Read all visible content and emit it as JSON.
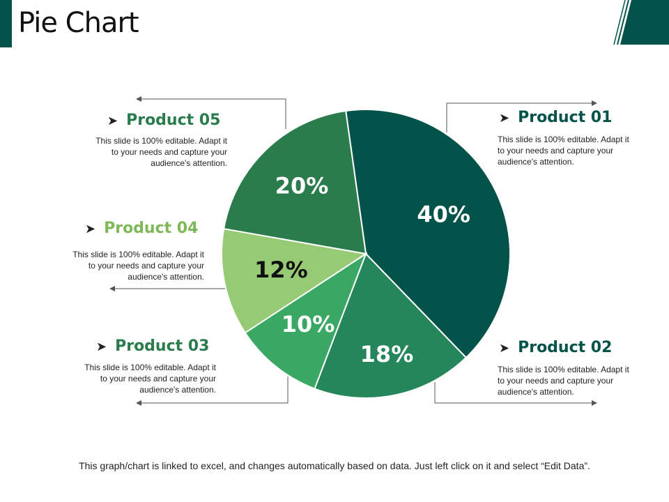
{
  "page": {
    "title": "Pie Chart"
  },
  "colors": {
    "accent": "#03534a",
    "p01": "#03534a",
    "p02": "#24865a",
    "p03": "#3aa864",
    "p04": "#97ca74",
    "p05": "#2b7c4c",
    "label_teal": "#03534a",
    "label_green": "#2b7c4c",
    "label_light": "#7fb858",
    "line": "#555555"
  },
  "products": [
    {
      "name": "Product 01",
      "desc_lines": [
        "This slide is 100% editable. Adapt it",
        "to your needs and capture your",
        "audience's attention."
      ]
    },
    {
      "name": "Product 02",
      "desc_lines": [
        "This slide is 100% editable. Adapt it",
        "to your needs and capture your",
        "audience's attention."
      ]
    },
    {
      "name": "Product 03",
      "desc_lines": [
        "This slide is 100% editable. Adapt it",
        "to your needs and capture your",
        "audience's attention."
      ]
    },
    {
      "name": "Product 04",
      "desc_lines": [
        "This slide is 100% editable. Adapt it",
        "to your needs and capture your",
        "audience's attention."
      ]
    },
    {
      "name": "Product 05",
      "desc_lines": [
        "This slide is 100% editable. Adapt it",
        "to your needs and capture your",
        "audience's attention."
      ]
    }
  ],
  "chart_data": {
    "type": "pie",
    "title": "Pie Chart",
    "categories": [
      "Product 01",
      "Product 02",
      "Product 03",
      "Product 04",
      "Product 05"
    ],
    "values": [
      40,
      18,
      10,
      12,
      20
    ],
    "data_labels": [
      "40%",
      "18%",
      "10%",
      "12%",
      "20%"
    ],
    "colors": [
      "#03534a",
      "#24865a",
      "#3aa864",
      "#97ca74",
      "#2b7c4c"
    ]
  },
  "footer": {
    "text": "This graph/chart is linked to excel, and changes automatically based on data. Just left click on it and select “Edit Data”."
  }
}
